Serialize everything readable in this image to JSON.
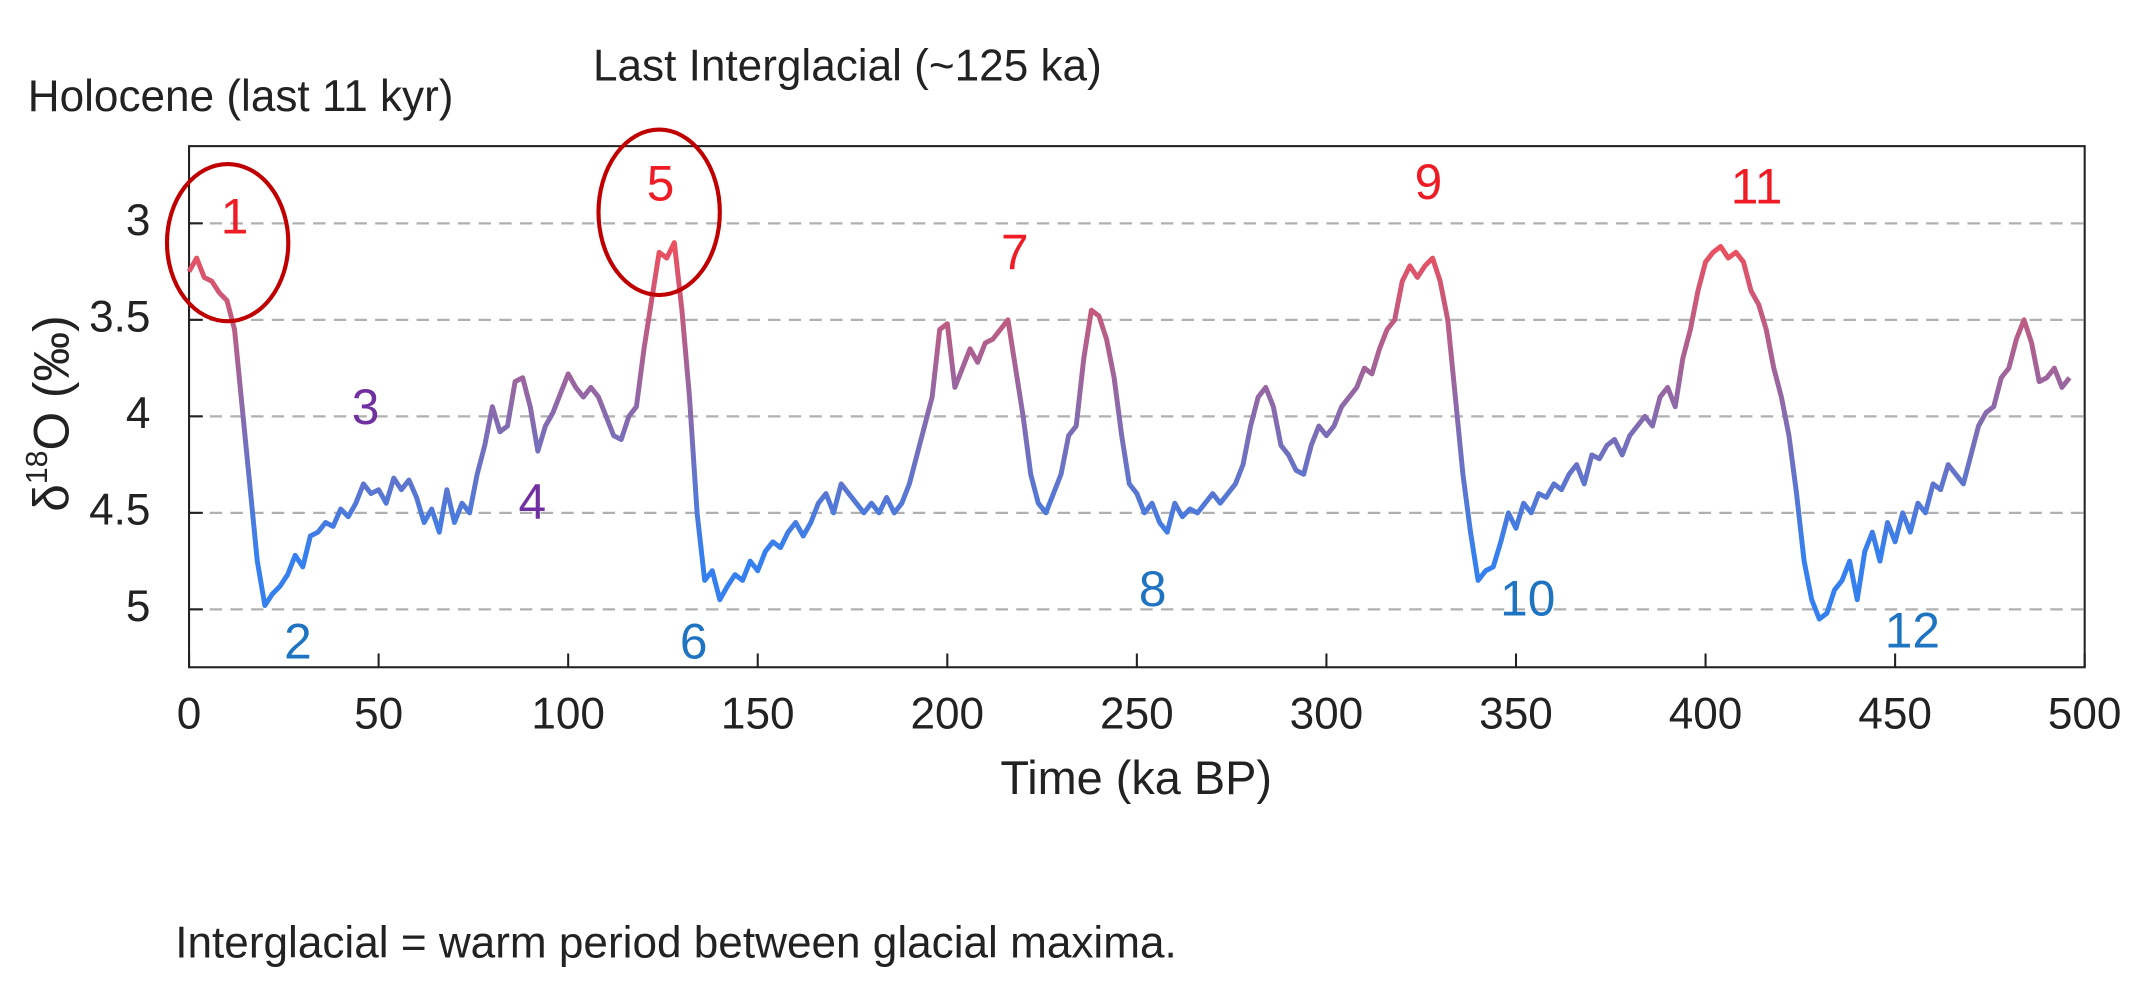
{
  "chart_data": {
    "type": "line",
    "texts": {
      "holocene": "Holocene (last 11 kyr)",
      "last_interglacial": "Last Interglacial (~125 ka)",
      "footnote": "Interglacial = warm period between glacial maxima."
    },
    "xlabel": "Time (ka BP)",
    "ylabel_parts": [
      "δ",
      "18",
      "O (‰)"
    ],
    "xlim": [
      0,
      500
    ],
    "xticks": [
      0,
      50,
      100,
      150,
      200,
      250,
      300,
      350,
      400,
      450,
      500
    ],
    "ylim": [
      5.3,
      2.6
    ],
    "yticks": [
      3,
      3.5,
      4,
      4.5,
      5
    ],
    "grid": true,
    "line_gradient": [
      "#ef4f5c",
      "#3580ee"
    ],
    "circle_color": "#c00000",
    "annotations": [
      {
        "text": "1",
        "color": "#ee1c25"
      },
      {
        "text": "2",
        "color": "#1f74c2"
      },
      {
        "text": "3",
        "color": "#7030a0"
      },
      {
        "text": "4",
        "color": "#7030a0"
      },
      {
        "text": "5",
        "color": "#ee1c25"
      },
      {
        "text": "6",
        "color": "#1f74c2"
      },
      {
        "text": "7",
        "color": "#ee1c25"
      },
      {
        "text": "8",
        "color": "#1f74c2"
      },
      {
        "text": "9",
        "color": "#ee1c25"
      },
      {
        "text": "10",
        "color": "#1f74c2"
      },
      {
        "text": "11",
        "color": "#ee1c25"
      },
      {
        "text": "12",
        "color": "#1f74c2"
      }
    ],
    "x": [
      0,
      2,
      4,
      6,
      8,
      10,
      12,
      14,
      16,
      18,
      20,
      22,
      24,
      26,
      28,
      30,
      32,
      34,
      36,
      38,
      40,
      42,
      44,
      46,
      48,
      50,
      52,
      54,
      56,
      58,
      60,
      62,
      64,
      66,
      68,
      70,
      72,
      74,
      76,
      78,
      80,
      82,
      84,
      86,
      88,
      90,
      92,
      94,
      96,
      98,
      100,
      102,
      104,
      106,
      108,
      110,
      112,
      114,
      116,
      118,
      120,
      122,
      124,
      126,
      128,
      130,
      132,
      134,
      136,
      138,
      140,
      142,
      144,
      146,
      148,
      150,
      152,
      154,
      156,
      158,
      160,
      162,
      164,
      166,
      168,
      170,
      172,
      174,
      176,
      178,
      180,
      182,
      184,
      186,
      188,
      190,
      192,
      194,
      196,
      198,
      200,
      202,
      204,
      206,
      208,
      210,
      212,
      214,
      216,
      218,
      220,
      222,
      224,
      226,
      228,
      230,
      232,
      234,
      236,
      238,
      240,
      242,
      244,
      246,
      248,
      250,
      252,
      254,
      256,
      258,
      260,
      262,
      264,
      266,
      268,
      270,
      272,
      274,
      276,
      278,
      280,
      282,
      284,
      286,
      288,
      290,
      292,
      294,
      296,
      298,
      300,
      302,
      304,
      306,
      308,
      310,
      312,
      314,
      316,
      318,
      320,
      322,
      324,
      326,
      328,
      330,
      332,
      334,
      336,
      338,
      340,
      342,
      344,
      346,
      348,
      350,
      352,
      354,
      356,
      358,
      360,
      362,
      364,
      366,
      368,
      370,
      372,
      374,
      376,
      378,
      380,
      382,
      384,
      386,
      388,
      390,
      392,
      394,
      396,
      398,
      400,
      402,
      404,
      406,
      408,
      410,
      412,
      414,
      416,
      418,
      420,
      422,
      424,
      426,
      428,
      430,
      432,
      434,
      436,
      438,
      440,
      442,
      444,
      446,
      448,
      450,
      452,
      454,
      456,
      458,
      460,
      462,
      464,
      466,
      468,
      470,
      472,
      474,
      476,
      478,
      480,
      482,
      484,
      486,
      488,
      490,
      492,
      494,
      496
    ],
    "values": [
      3.25,
      3.18,
      3.28,
      3.3,
      3.36,
      3.4,
      3.55,
      3.95,
      4.35,
      4.75,
      4.98,
      4.92,
      4.88,
      4.82,
      4.72,
      4.78,
      4.62,
      4.6,
      4.55,
      4.57,
      4.48,
      4.52,
      4.45,
      4.35,
      4.4,
      4.38,
      4.45,
      4.32,
      4.38,
      4.33,
      4.42,
      4.55,
      4.48,
      4.6,
      4.38,
      4.55,
      4.45,
      4.5,
      4.3,
      4.15,
      3.95,
      4.08,
      4.05,
      3.82,
      3.8,
      3.95,
      4.18,
      4.05,
      3.98,
      3.88,
      3.78,
      3.85,
      3.9,
      3.85,
      3.9,
      4.0,
      4.1,
      4.12,
      4.0,
      3.95,
      3.65,
      3.4,
      3.15,
      3.18,
      3.1,
      3.45,
      3.9,
      4.5,
      4.85,
      4.8,
      4.95,
      4.88,
      4.82,
      4.85,
      4.75,
      4.8,
      4.7,
      4.65,
      4.68,
      4.6,
      4.55,
      4.62,
      4.55,
      4.45,
      4.4,
      4.5,
      4.35,
      4.4,
      4.45,
      4.5,
      4.45,
      4.5,
      4.42,
      4.5,
      4.45,
      4.35,
      4.2,
      4.05,
      3.9,
      3.55,
      3.52,
      3.85,
      3.75,
      3.65,
      3.72,
      3.62,
      3.6,
      3.55,
      3.5,
      3.75,
      4.0,
      4.3,
      4.45,
      4.5,
      4.4,
      4.3,
      4.1,
      4.05,
      3.7,
      3.45,
      3.48,
      3.6,
      3.8,
      4.1,
      4.35,
      4.4,
      4.5,
      4.45,
      4.55,
      4.6,
      4.45,
      4.52,
      4.48,
      4.5,
      4.45,
      4.4,
      4.45,
      4.4,
      4.35,
      4.25,
      4.05,
      3.9,
      3.85,
      3.95,
      4.15,
      4.2,
      4.28,
      4.3,
      4.15,
      4.05,
      4.1,
      4.05,
      3.95,
      3.9,
      3.85,
      3.75,
      3.78,
      3.65,
      3.55,
      3.5,
      3.3,
      3.22,
      3.28,
      3.22,
      3.18,
      3.3,
      3.5,
      3.9,
      4.3,
      4.6,
      4.85,
      4.8,
      4.78,
      4.65,
      4.5,
      4.58,
      4.45,
      4.5,
      4.4,
      4.42,
      4.35,
      4.38,
      4.3,
      4.25,
      4.35,
      4.2,
      4.22,
      4.15,
      4.12,
      4.2,
      4.1,
      4.05,
      4.0,
      4.05,
      3.9,
      3.85,
      3.95,
      3.7,
      3.55,
      3.35,
      3.2,
      3.15,
      3.12,
      3.18,
      3.15,
      3.2,
      3.35,
      3.42,
      3.55,
      3.75,
      3.9,
      4.1,
      4.4,
      4.75,
      4.95,
      5.05,
      5.02,
      4.9,
      4.85,
      4.75,
      4.95,
      4.7,
      4.6,
      4.75,
      4.55,
      4.65,
      4.5,
      4.6,
      4.45,
      4.5,
      4.35,
      4.38,
      4.25,
      4.3,
      4.35,
      4.2,
      4.05,
      3.98,
      3.95,
      3.8,
      3.75,
      3.6,
      3.5,
      3.62,
      3.82,
      3.8,
      3.75,
      3.85,
      3.8
    ]
  }
}
